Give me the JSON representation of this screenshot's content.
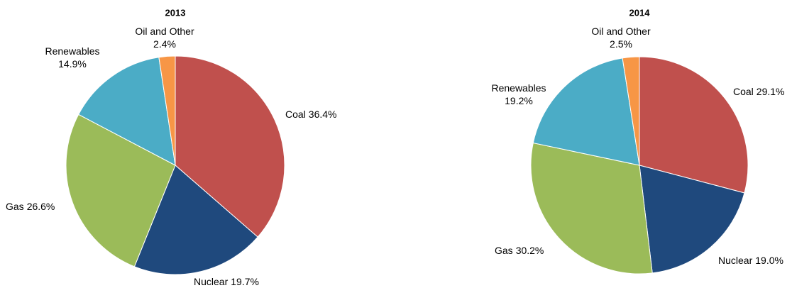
{
  "chart_data": [
    {
      "type": "pie",
      "title": "2013",
      "categories": [
        "Coal",
        "Nuclear",
        "Gas",
        "Renewables",
        "Oil and Other"
      ],
      "values": [
        36.4,
        19.7,
        26.6,
        14.9,
        2.4
      ],
      "value_labels": [
        "36.4%",
        "19.7%",
        "26.6%",
        "14.9%",
        "2.4%"
      ],
      "colors": [
        "#c0504d",
        "#1f497d",
        "#9bbb59",
        "#4bacc6",
        "#f79646"
      ]
    },
    {
      "type": "pie",
      "title": "2014",
      "categories": [
        "Coal",
        "Nuclear",
        "Gas",
        "Renewables",
        "Oil and Other"
      ],
      "values": [
        29.1,
        19.0,
        30.2,
        19.2,
        2.5
      ],
      "value_labels": [
        "29.1%",
        "19.0%",
        "30.2%",
        "19.2%",
        "2.5%"
      ],
      "colors": [
        "#c0504d",
        "#1f497d",
        "#9bbb59",
        "#4bacc6",
        "#f79646"
      ]
    }
  ]
}
